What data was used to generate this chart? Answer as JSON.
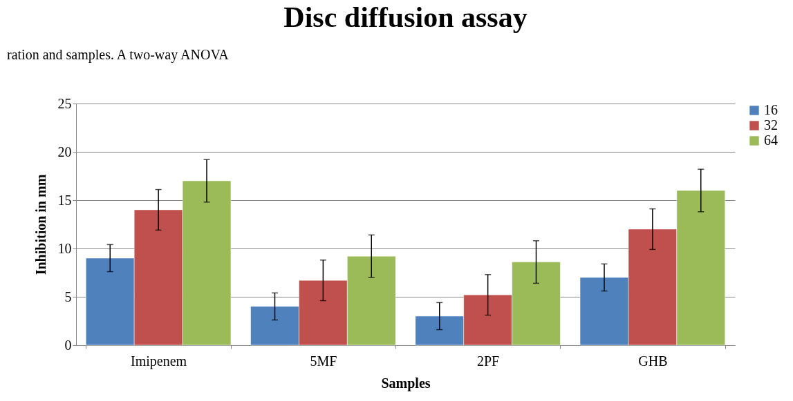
{
  "chart_data": {
    "type": "bar",
    "title": "Disc diffusion assay",
    "xlabel": "Samples",
    "ylabel": "Inhibition in mm",
    "annotations": [
      "ration and samples. A two-way ANOVA"
    ],
    "categories": [
      "Imipenem",
      "5MF",
      "2PF",
      "GHB"
    ],
    "series": [
      {
        "name": "16",
        "color": "#4f81bd",
        "values": [
          9,
          4,
          3,
          7
        ],
        "errors": [
          1.4,
          1.4,
          1.4,
          1.4
        ]
      },
      {
        "name": "32",
        "color": "#c0504d",
        "values": [
          14,
          6.7,
          5.2,
          12
        ],
        "errors": [
          2.1,
          2.1,
          2.1,
          2.1
        ]
      },
      {
        "name": "64",
        "color": "#9bbb59",
        "values": [
          17,
          9.2,
          8.6,
          16
        ],
        "errors": [
          2.2,
          2.2,
          2.2,
          2.2
        ]
      }
    ],
    "ylim": [
      0,
      25
    ],
    "yticks": [
      0,
      5,
      10,
      15,
      20,
      25
    ],
    "grid": "y",
    "legend": "right"
  }
}
